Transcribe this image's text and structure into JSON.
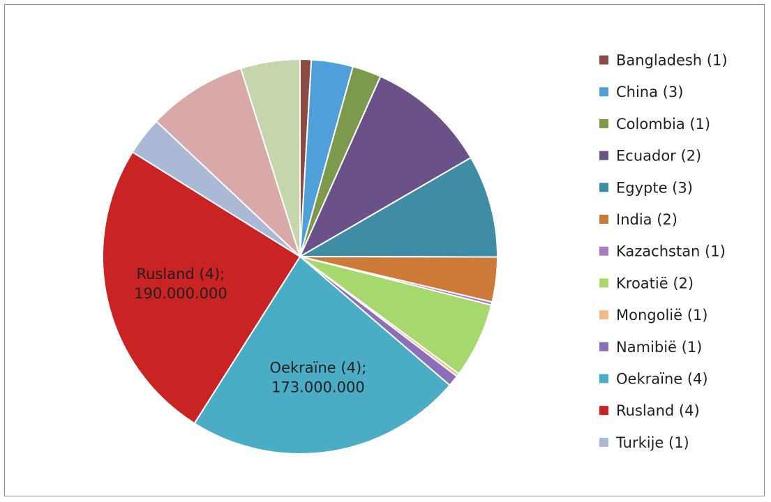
{
  "chart_data": {
    "type": "pie",
    "title": "",
    "legend_position": "right",
    "slices": [
      {
        "name": "Bangladesh (1)",
        "value": 7000000,
        "color": "#8b4a42",
        "label": ""
      },
      {
        "name": "China (3)",
        "value": 26000000,
        "color": "#4f9fd9",
        "label": ""
      },
      {
        "name": "Colombia (1)",
        "value": 18000000,
        "color": "#7d9a4c",
        "label": ""
      },
      {
        "name": "Ecuador (2)",
        "value": 76000000,
        "color": "#6a5288",
        "label": ""
      },
      {
        "name": "Egypte (3)",
        "value": 64000000,
        "color": "#3e8da4",
        "label": ""
      },
      {
        "name": "India (2)",
        "value": 28000000,
        "color": "#cd7a38",
        "label": ""
      },
      {
        "name": "Kazachstan (1)",
        "value": 2000000,
        "color": "#a77cc4",
        "label": ""
      },
      {
        "name": "Kroatië (2)",
        "value": 47000000,
        "color": "#a6d86e",
        "label": ""
      },
      {
        "name": "Mongolië (1)",
        "value": 2000000,
        "color": "#f5b98b",
        "label": ""
      },
      {
        "name": "Namibië (1)",
        "value": 7000000,
        "color": "#8b6fb8",
        "label": ""
      },
      {
        "name": "Oekraïne (4)",
        "value": 173000000,
        "color": "#4bacc6",
        "label": "Oekraïne (4);\n173.000.000"
      },
      {
        "name": "Rusland (4)",
        "value": 190000000,
        "color": "#c92323",
        "label": "Rusland (4);\n190.000.000"
      },
      {
        "name": "Turkije (1)",
        "value": 24000000,
        "color": "#aab9d6",
        "label": ""
      },
      {
        "name": "",
        "value": 62000000,
        "color": "#d9a9a9",
        "label": ""
      },
      {
        "name": "",
        "value": 37000000,
        "color": "#c6d6ac",
        "label": ""
      }
    ]
  }
}
